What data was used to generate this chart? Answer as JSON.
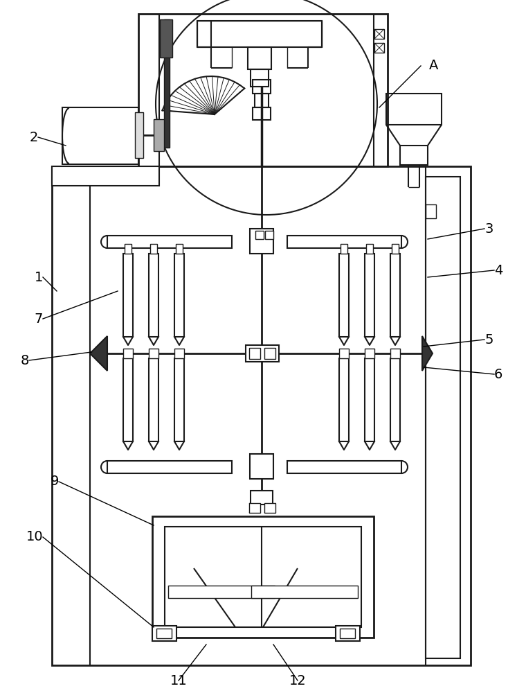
{
  "bg_color": "#ffffff",
  "line_color": "#1a1a1a",
  "lw_main": 2.0,
  "lw_med": 1.5,
  "lw_thin": 1.0,
  "lw_hair": 0.7
}
